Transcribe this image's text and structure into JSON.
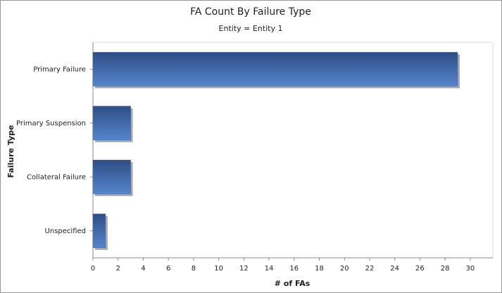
{
  "chart_data": {
    "type": "bar",
    "orientation": "horizontal",
    "title": "FA Count By Failure Type",
    "subtitle": "Entity = Entity 1",
    "x_label": "# of FAs",
    "y_label": "Failure Type",
    "categories": [
      "Primary Failure",
      "Primary Suspension",
      "Collateral Failure",
      "Unspecified"
    ],
    "values": [
      29,
      3,
      3,
      1
    ],
    "color": "#3d63a5",
    "xlim": [
      0,
      31.8
    ],
    "xticks": [
      0,
      2,
      4,
      6,
      8,
      10,
      12,
      14,
      16,
      18,
      20,
      22,
      24,
      26,
      28,
      30
    ],
    "grid": false
  }
}
